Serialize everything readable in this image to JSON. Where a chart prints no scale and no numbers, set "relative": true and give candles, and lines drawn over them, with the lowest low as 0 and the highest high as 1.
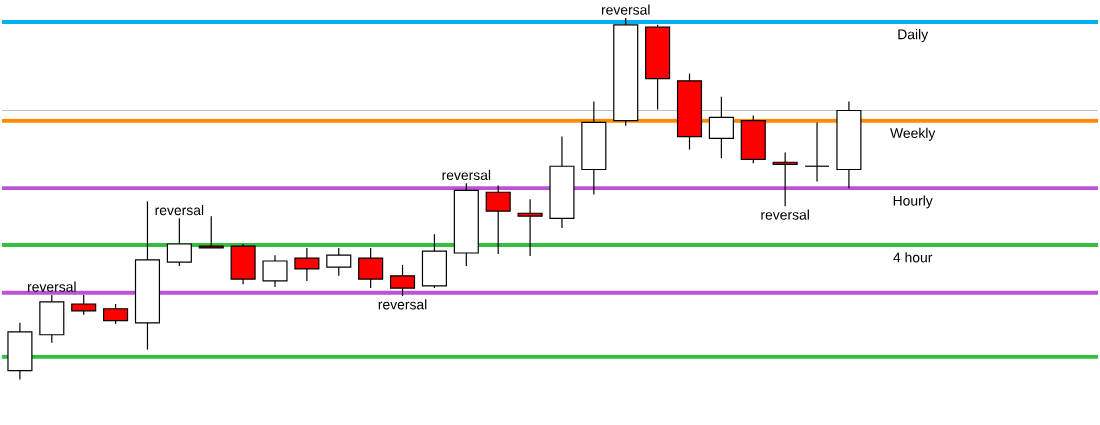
{
  "chart_data": {
    "type": "candlestick",
    "relative": true,
    "categories": [
      null,
      null,
      null,
      null,
      null,
      null,
      null,
      null,
      null,
      null,
      null,
      null,
      null,
      null,
      null,
      null,
      null,
      null,
      null,
      null,
      null,
      null,
      null,
      null,
      null,
      null,
      null
    ],
    "ohlc": [
      [
        0.025,
        0.157,
        0,
        0.132
      ],
      [
        0.124,
        0.234,
        0.102,
        0.215
      ],
      [
        0.209,
        0.234,
        0.179,
        0.19
      ],
      [
        0.196,
        0.209,
        0.154,
        0.163
      ],
      [
        0.157,
        0.493,
        0.083,
        0.331
      ],
      [
        0.325,
        0.446,
        0.314,
        0.375
      ],
      [
        0.369,
        0.452,
        0.364,
        0.364
      ],
      [
        0.369,
        0.375,
        0.264,
        0.278
      ],
      [
        0.273,
        0.344,
        0.256,
        0.328
      ],
      [
        0.336,
        0.364,
        0.273,
        0.306
      ],
      [
        0.311,
        0.364,
        0.287,
        0.344
      ],
      [
        0.336,
        0.364,
        0.253,
        0.278
      ],
      [
        0.287,
        0.317,
        0.231,
        0.253
      ],
      [
        0.259,
        0.402,
        0.253,
        0.355
      ],
      [
        0.35,
        0.543,
        0.314,
        0.523
      ],
      [
        0.518,
        0.537,
        0.347,
        0.466
      ],
      [
        0.46,
        0.499,
        0.342,
        0.452
      ],
      [
        0.446,
        0.672,
        0.419,
        0.59
      ],
      [
        0.581,
        0.769,
        0.512,
        0.711
      ],
      [
        0.716,
        1,
        0.702,
        0.981
      ],
      [
        0.975,
        0.981,
        0.747,
        0.832
      ],
      [
        0.826,
        0.846,
        0.636,
        0.672
      ],
      [
        0.667,
        0.782,
        0.612,
        0.725
      ],
      [
        0.716,
        0.73,
        0.598,
        0.609
      ],
      [
        0.601,
        0.628,
        0.479,
        0.595
      ],
      [
        0.59,
        0.711,
        0.548,
        0.59
      ],
      [
        0.581,
        0.769,
        0.529,
        0.744
      ]
    ],
    "colors": [
      "#ffffff",
      "#ffffff",
      "#ff0000",
      "#ff0000",
      "#ffffff",
      "#ffffff",
      "#ff0000",
      "#ff0000",
      "#ffffff",
      "#ff0000",
      "#ffffff",
      "#ff0000",
      "#ff0000",
      "#ffffff",
      "#ffffff",
      "#ff0000",
      "#ff0000",
      "#ffffff",
      "#ffffff",
      "#ffffff",
      "#ff0000",
      "#ff0000",
      "#ffffff",
      "#ff0000",
      "#ff0000",
      "#000000",
      "#ffffff"
    ],
    "ref_lines": [
      {
        "axis": "y",
        "value": 0.989,
        "label": "Daily",
        "color": "#00b0f0"
      },
      {
        "axis": "y",
        "value": 0.744,
        "label": null,
        "color": "#c0c0c0"
      },
      {
        "axis": "y",
        "value": 0.716,
        "label": "Weekly",
        "color": "#ff8c00"
      },
      {
        "axis": "y",
        "value": 0.529,
        "label": "Hourly",
        "color": "#b955d3"
      },
      {
        "axis": "y",
        "value": 0.372,
        "label": "4 hour",
        "color": "#33c040"
      },
      {
        "axis": "y",
        "value": 0.24,
        "label": null,
        "color": "#b955d3"
      },
      {
        "axis": "y",
        "value": 0.063,
        "label": null,
        "color": "#33c040"
      }
    ],
    "annotations": [
      {
        "text": "reversal",
        "y": 0.234
      },
      {
        "text": "reversal",
        "y": 0.446
      },
      {
        "text": "reversal",
        "y": 0.231
      },
      {
        "text": "reversal",
        "y": 0.543
      },
      {
        "text": "reversal",
        "y": 1
      },
      {
        "text": "reversal",
        "y": 0.479
      }
    ]
  }
}
